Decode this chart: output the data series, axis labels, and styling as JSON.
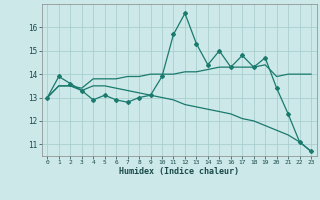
{
  "line1_x": [
    0,
    1,
    2,
    3,
    4,
    5,
    6,
    7,
    8,
    9,
    10,
    11,
    12,
    13,
    14,
    15,
    16,
    17,
    18,
    19,
    20,
    21,
    22,
    23
  ],
  "line1_y": [
    13.0,
    13.9,
    13.6,
    13.3,
    12.9,
    13.1,
    12.9,
    12.8,
    13.0,
    13.1,
    13.9,
    15.7,
    16.6,
    15.3,
    14.4,
    15.0,
    14.3,
    14.8,
    14.3,
    14.7,
    13.4,
    12.3,
    11.1,
    10.7
  ],
  "line2_x": [
    0,
    1,
    2,
    3,
    4,
    5,
    6,
    7,
    8,
    9,
    10,
    11,
    12,
    13,
    14,
    15,
    16,
    17,
    18,
    19,
    20,
    21,
    22,
    23
  ],
  "line2_y": [
    13.0,
    13.5,
    13.5,
    13.4,
    13.8,
    13.8,
    13.8,
    13.9,
    13.9,
    14.0,
    14.0,
    14.0,
    14.1,
    14.1,
    14.2,
    14.3,
    14.3,
    14.3,
    14.3,
    14.4,
    13.9,
    14.0,
    14.0,
    14.0
  ],
  "line3_x": [
    0,
    1,
    2,
    3,
    4,
    5,
    6,
    7,
    8,
    9,
    10,
    11,
    12,
    13,
    14,
    15,
    16,
    17,
    18,
    19,
    20,
    21,
    22,
    23
  ],
  "line3_y": [
    13.0,
    13.5,
    13.5,
    13.3,
    13.5,
    13.5,
    13.4,
    13.3,
    13.2,
    13.1,
    13.0,
    12.9,
    12.7,
    12.6,
    12.5,
    12.4,
    12.3,
    12.1,
    12.0,
    11.8,
    11.6,
    11.4,
    11.1,
    10.7
  ],
  "color": "#1a7a6e",
  "bg_color": "#cce8e8",
  "grid_color": "#aacece",
  "xlabel": "Humidex (Indice chaleur)",
  "ylim": [
    10.5,
    17.0
  ],
  "xlim": [
    -0.5,
    23.5
  ],
  "yticks": [
    11,
    12,
    13,
    14,
    15,
    16
  ],
  "xticks": [
    0,
    1,
    2,
    3,
    4,
    5,
    6,
    7,
    8,
    9,
    10,
    11,
    12,
    13,
    14,
    15,
    16,
    17,
    18,
    19,
    20,
    21,
    22,
    23
  ]
}
